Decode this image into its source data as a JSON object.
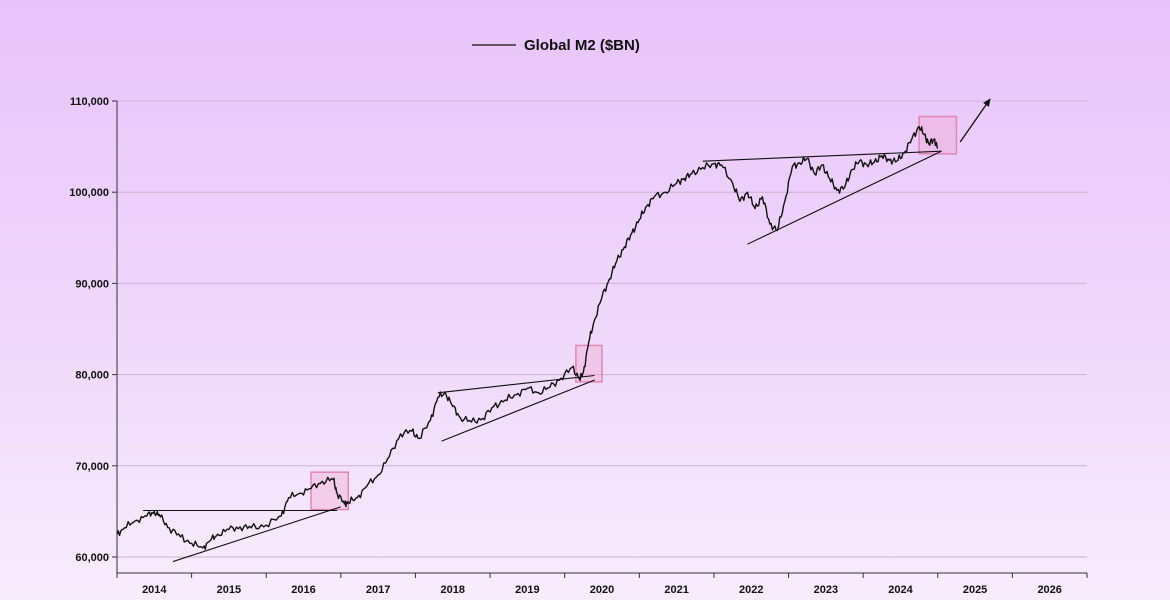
{
  "chart_data": {
    "type": "line",
    "title": "",
    "xlabel": "",
    "ylabel": "",
    "legend": {
      "label": "Global M2 ($BN)",
      "placement": "top-center"
    },
    "grid": "horizontal",
    "ylim": [
      59500,
      110000
    ],
    "xlim": [
      2013.5,
      2026.5
    ],
    "y_ticks": [
      60000,
      70000,
      80000,
      90000,
      100000,
      110000
    ],
    "y_tick_labels": [
      "60,000",
      "70,000",
      "80,000",
      "90,000",
      "100,000",
      "110,000"
    ],
    "x_tick_labels": [
      "2014",
      "2015",
      "2016",
      "2017",
      "2018",
      "2019",
      "2020",
      "2021",
      "2022",
      "2023",
      "2024",
      "2025",
      "2026"
    ],
    "series": [
      {
        "name": "Global M2 ($BN)",
        "color": "#111111",
        "x": [
          2013.5,
          2013.6,
          2013.75,
          2013.9,
          2014.0,
          2014.08,
          2014.2,
          2014.35,
          2014.5,
          2014.65,
          2014.75,
          2014.85,
          2015.0,
          2015.15,
          2015.3,
          2015.5,
          2015.7,
          2015.8,
          2015.95,
          2016.1,
          2016.25,
          2016.4,
          2016.45,
          2016.55,
          2016.6,
          2016.72,
          2016.85,
          2017.0,
          2017.15,
          2017.3,
          2017.45,
          2017.55,
          2017.7,
          2017.8,
          2017.9,
          2018.0,
          2018.1,
          2018.25,
          2018.4,
          2018.55,
          2018.7,
          2018.85,
          2019.0,
          2019.15,
          2019.3,
          2019.45,
          2019.6,
          2019.7,
          2019.75,
          2019.82,
          2019.9,
          2020.0,
          2020.1,
          2020.2,
          2020.3,
          2020.4,
          2020.5,
          2020.6,
          2020.7,
          2020.85,
          2021.0,
          2021.1,
          2021.2,
          2021.35,
          2021.5,
          2021.6,
          2021.75,
          2021.85,
          2021.95,
          2022.05,
          2022.15,
          2022.25,
          2022.35,
          2022.45,
          2022.55,
          2022.65,
          2022.75,
          2022.85,
          2022.95,
          2023.05,
          2023.15,
          2023.25,
          2023.35,
          2023.45,
          2023.55,
          2023.65,
          2023.75,
          2023.85,
          2023.95,
          2024.05,
          2024.15,
          2024.25,
          2024.32,
          2024.38,
          2024.45,
          2024.5
        ],
        "values": [
          62500,
          63200,
          64000,
          64500,
          65000,
          64400,
          63200,
          62200,
          61500,
          61000,
          61800,
          62500,
          63000,
          63300,
          63200,
          63500,
          64500,
          66500,
          67000,
          67500,
          68300,
          68500,
          67000,
          65800,
          66000,
          66500,
          67800,
          69000,
          71000,
          73500,
          73800,
          73000,
          75000,
          77500,
          78000,
          76500,
          75300,
          74800,
          75200,
          76500,
          77200,
          77800,
          78500,
          78000,
          78600,
          79600,
          80800,
          79500,
          80200,
          83500,
          86000,
          88500,
          90500,
          92500,
          94000,
          95500,
          97000,
          98500,
          99500,
          100000,
          101000,
          101500,
          102000,
          102700,
          103100,
          103000,
          101000,
          99000,
          100000,
          98200,
          99500,
          96500,
          95800,
          99000,
          102800,
          103200,
          103700,
          102000,
          103000,
          101500,
          100200,
          100500,
          102500,
          103400,
          103000,
          103300,
          104000,
          103500,
          103400,
          104300,
          105800,
          107200,
          106300,
          105300,
          105800,
          104800
        ]
      }
    ],
    "annotations": {
      "trendlines": [
        {
          "x": [
            2013.85,
            2016.45
          ],
          "y": [
            65100,
            65100
          ]
        },
        {
          "x": [
            2014.25,
            2016.5
          ],
          "y": [
            59500,
            65500
          ]
        },
        {
          "x": [
            2017.8,
            2019.9
          ],
          "y": [
            78000,
            79900
          ]
        },
        {
          "x": [
            2017.85,
            2019.9
          ],
          "y": [
            72700,
            79400
          ]
        },
        {
          "x": [
            2021.35,
            2024.55
          ],
          "y": [
            103400,
            104500
          ]
        },
        {
          "x": [
            2021.95,
            2024.55
          ],
          "y": [
            94300,
            104500
          ]
        }
      ],
      "highlight_boxes": [
        {
          "x": [
            2016.1,
            2016.6
          ],
          "y": [
            65200,
            69300
          ]
        },
        {
          "x": [
            2019.65,
            2020.0
          ],
          "y": [
            79200,
            83200
          ]
        },
        {
          "x": [
            2024.25,
            2024.75
          ],
          "y": [
            104200,
            108300
          ]
        }
      ],
      "arrow": {
        "x": [
          2024.8,
          2025.2
        ],
        "y": [
          105500,
          110200
        ]
      }
    }
  }
}
